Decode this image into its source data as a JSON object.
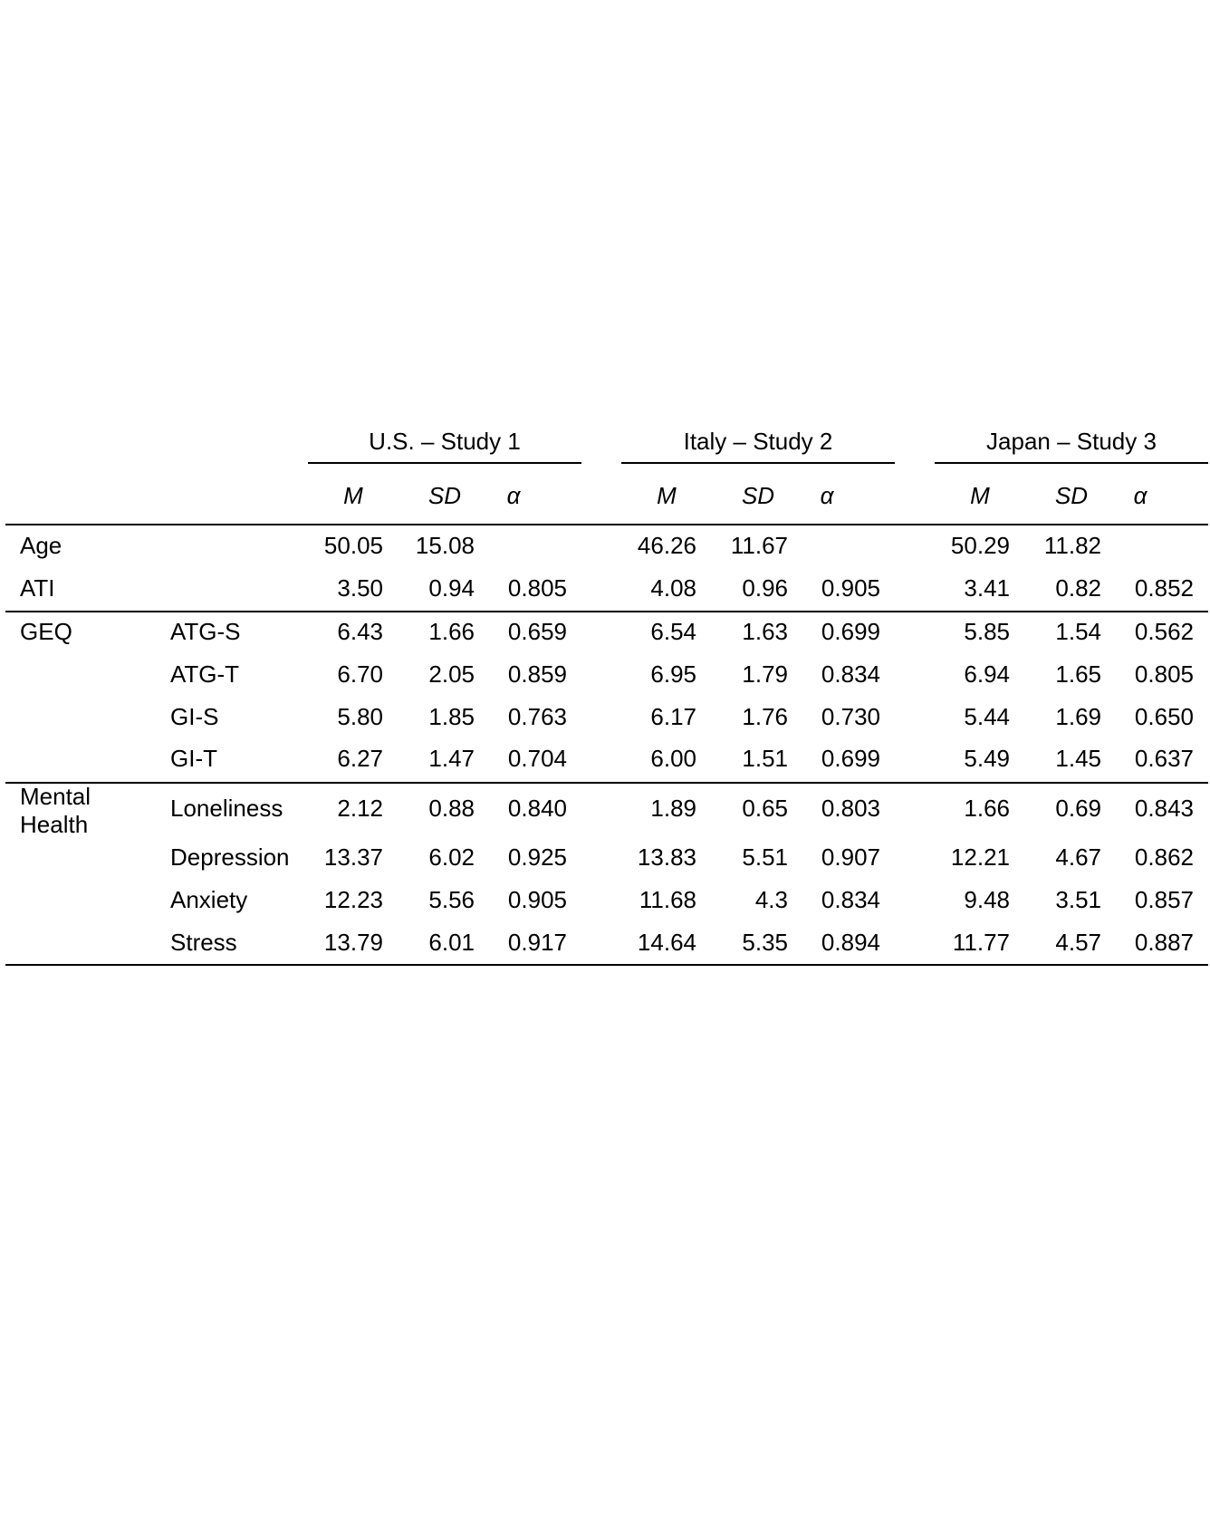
{
  "table": {
    "groups": [
      {
        "label": "U.S. – Study 1",
        "stats": [
          "M",
          "SD",
          "α"
        ]
      },
      {
        "label": "Italy – Study 2",
        "stats": [
          "M",
          "SD",
          "α"
        ]
      },
      {
        "label": "Japan – Study 3",
        "stats": [
          "M",
          "SD",
          "α"
        ]
      }
    ],
    "rows": [
      {
        "category": "Age",
        "sub": "",
        "values": [
          "50.05",
          "15.08",
          "",
          "46.26",
          "11.67",
          "",
          "50.29",
          "11.82",
          ""
        ]
      },
      {
        "category": "ATI",
        "sub": "",
        "values": [
          "3.50",
          "0.94",
          "0.805",
          "4.08",
          "0.96",
          "0.905",
          "3.41",
          "0.82",
          "0.852"
        ]
      },
      {
        "category": "GEQ",
        "sub": "ATG-S",
        "values": [
          "6.43",
          "1.66",
          "0.659",
          "6.54",
          "1.63",
          "0.699",
          "5.85",
          "1.54",
          "0.562"
        ]
      },
      {
        "category": "",
        "sub": "ATG-T",
        "values": [
          "6.70",
          "2.05",
          "0.859",
          "6.95",
          "1.79",
          "0.834",
          "6.94",
          "1.65",
          "0.805"
        ]
      },
      {
        "category": "",
        "sub": "GI-S",
        "values": [
          "5.80",
          "1.85",
          "0.763",
          "6.17",
          "1.76",
          "0.730",
          "5.44",
          "1.69",
          "0.650"
        ]
      },
      {
        "category": "",
        "sub": "GI-T",
        "values": [
          "6.27",
          "1.47",
          "0.704",
          "6.00",
          "1.51",
          "0.699",
          "5.49",
          "1.45",
          "0.637"
        ]
      },
      {
        "category": "Mental Health",
        "category_lines": [
          "Mental",
          "Health"
        ],
        "sub": "Loneliness",
        "values": [
          "2.12",
          "0.88",
          "0.840",
          "1.89",
          "0.65",
          "0.803",
          "1.66",
          "0.69",
          "0.843"
        ]
      },
      {
        "category": "",
        "sub": "Depression",
        "values": [
          "13.37",
          "6.02",
          "0.925",
          "13.83",
          "5.51",
          "0.907",
          "12.21",
          "4.67",
          "0.862"
        ]
      },
      {
        "category": "",
        "sub": "Anxiety",
        "values": [
          "12.23",
          "5.56",
          "0.905",
          "11.68",
          "4.3",
          "0.834",
          "9.48",
          "3.51",
          "0.857"
        ]
      },
      {
        "category": "",
        "sub": "Stress",
        "values": [
          "13.79",
          "6.01",
          "0.917",
          "14.64",
          "5.35",
          "0.894",
          "11.77",
          "4.57",
          "0.887"
        ]
      }
    ]
  }
}
